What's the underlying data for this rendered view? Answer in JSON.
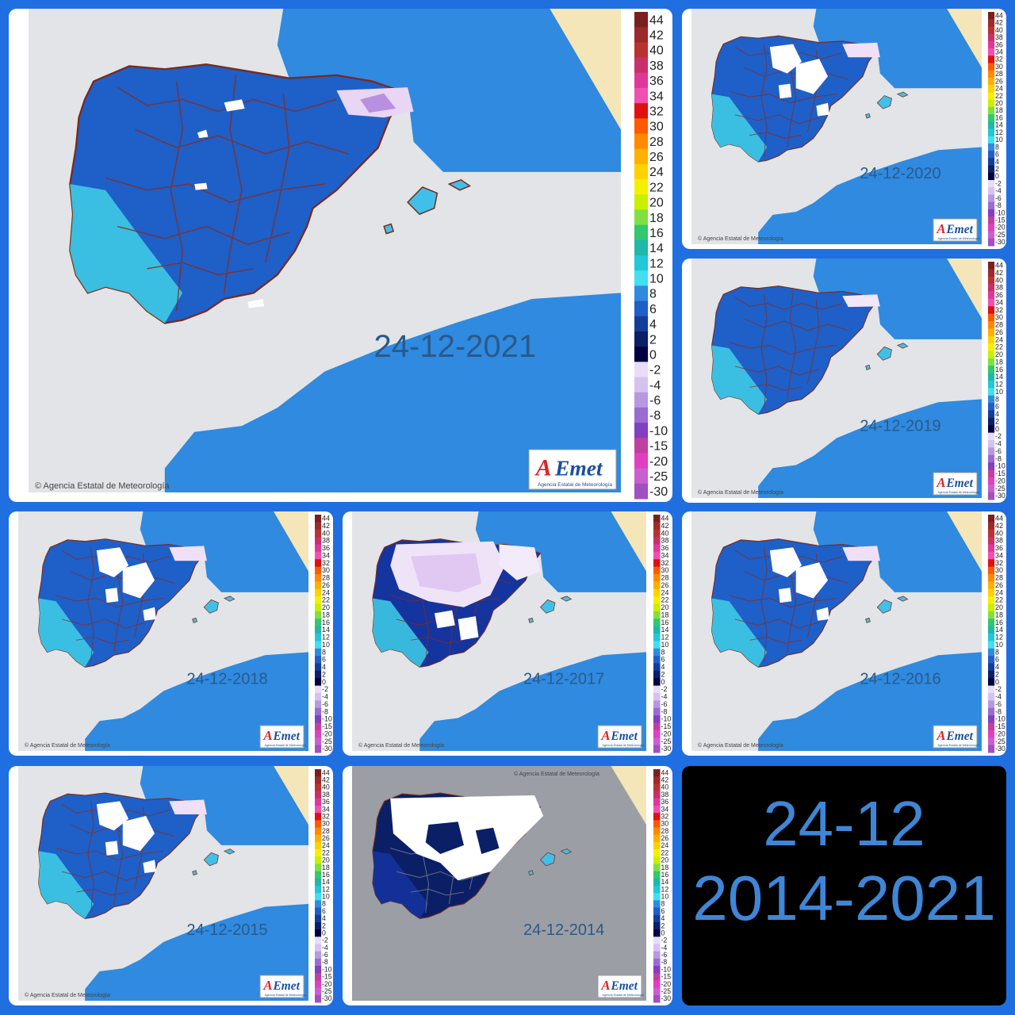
{
  "copyright": "Agencia Estatal de Meteorología",
  "logo": {
    "text_a": "A",
    "text_rest": "Emet",
    "subtitle": "Agencia Estatal de Meteorología"
  },
  "legend_ticks": [
    "44",
    "42",
    "40",
    "38",
    "36",
    "34",
    "32",
    "30",
    "28",
    "26",
    "24",
    "22",
    "20",
    "18",
    "16",
    "14",
    "12",
    "10",
    "8",
    "6",
    "4",
    "2",
    "0",
    "-2",
    "-4",
    "-6",
    "-8",
    "-10",
    "-15",
    "-20",
    "-25",
    "-30"
  ],
  "legend_colors": [
    "#7a1f1f",
    "#9b2a2a",
    "#b83232",
    "#c8306a",
    "#e0389a",
    "#f050b0",
    "#e01010",
    "#ff5a00",
    "#ff8a00",
    "#ffb000",
    "#ffd200",
    "#f5f000",
    "#c8f000",
    "#80e040",
    "#30c870",
    "#20b8a8",
    "#20c8d8",
    "#40e0f0",
    "#2f8ae0",
    "#1f5fc8",
    "#143d99",
    "#0a1f66",
    "#000040",
    "#e8dcf6",
    "#d6c2f0",
    "#b898e0",
    "#9a6cd0",
    "#8040c0",
    "#c040a0",
    "#e040c0",
    "#c860d0",
    "#a050c0"
  ],
  "maps": [
    {
      "id": "2021",
      "date": "24-12-2021"
    },
    {
      "id": "2020",
      "date": "24-12-2020"
    },
    {
      "id": "2019",
      "date": "24-12-2019"
    },
    {
      "id": "2018",
      "date": "24-12-2018"
    },
    {
      "id": "2017",
      "date": "24-12-2017"
    },
    {
      "id": "2016",
      "date": "24-12-2016"
    },
    {
      "id": "2015",
      "date": "24-12-2015"
    },
    {
      "id": "2014",
      "date": "24-12-2014"
    }
  ],
  "caption": {
    "line1": "24-12",
    "line2": "2014-2021"
  }
}
